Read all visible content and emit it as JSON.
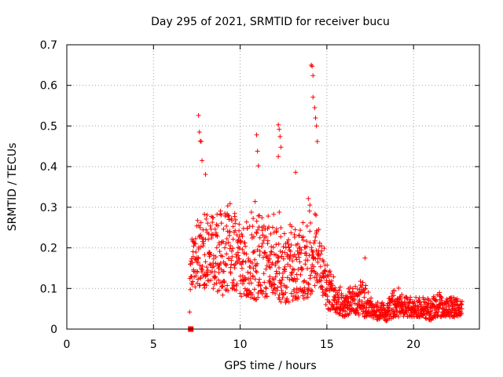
{
  "chart_data": {
    "type": "scatter",
    "title": "Day 295 of 2021, SRMTID for receiver bucu",
    "xlabel": "GPS time / hours",
    "ylabel": "SRMTID / TECUs",
    "xlim": [
      0,
      23.8
    ],
    "ylim": [
      0,
      0.7
    ],
    "xticks": [
      0,
      5,
      10,
      15,
      20
    ],
    "xtick_labels": [
      "0",
      "5",
      "10",
      "15",
      "20"
    ],
    "yticks": [
      0,
      0.1,
      0.2,
      0.3,
      0.4,
      0.5,
      0.6,
      0.7
    ],
    "ytick_labels": [
      "0",
      "0.1",
      "0.2",
      "0.3",
      "0.4",
      "0.5",
      "0.6",
      "0.7"
    ],
    "grid": true,
    "marker": "plus",
    "color": "#ff0000",
    "outlier_points": [
      {
        "x": 7.15,
        "y": 0.0
      },
      {
        "x": 7.6,
        "y": 0.526
      },
      {
        "x": 7.65,
        "y": 0.485
      },
      {
        "x": 7.7,
        "y": 0.463
      },
      {
        "x": 7.75,
        "y": 0.462
      },
      {
        "x": 7.8,
        "y": 0.415
      },
      {
        "x": 8.0,
        "y": 0.381
      },
      {
        "x": 10.95,
        "y": 0.478
      },
      {
        "x": 11.0,
        "y": 0.438
      },
      {
        "x": 11.05,
        "y": 0.402
      },
      {
        "x": 12.2,
        "y": 0.503
      },
      {
        "x": 12.25,
        "y": 0.492
      },
      {
        "x": 12.3,
        "y": 0.474
      },
      {
        "x": 12.35,
        "y": 0.448
      },
      {
        "x": 12.2,
        "y": 0.425
      },
      {
        "x": 13.2,
        "y": 0.386
      },
      {
        "x": 14.1,
        "y": 0.65
      },
      {
        "x": 14.15,
        "y": 0.647
      },
      {
        "x": 14.2,
        "y": 0.624
      },
      {
        "x": 14.2,
        "y": 0.571
      },
      {
        "x": 14.3,
        "y": 0.545
      },
      {
        "x": 14.35,
        "y": 0.52
      },
      {
        "x": 14.4,
        "y": 0.5
      },
      {
        "x": 14.45,
        "y": 0.462
      },
      {
        "x": 17.2,
        "y": 0.175
      }
    ],
    "trend_envelope": [
      {
        "x": 7.1,
        "low": 0.09,
        "high": 0.22
      },
      {
        "x": 7.5,
        "low": 0.1,
        "high": 0.3
      },
      {
        "x": 8.0,
        "low": 0.1,
        "high": 0.3
      },
      {
        "x": 8.5,
        "low": 0.1,
        "high": 0.28
      },
      {
        "x": 9.0,
        "low": 0.08,
        "high": 0.35
      },
      {
        "x": 9.5,
        "low": 0.1,
        "high": 0.32
      },
      {
        "x": 10.0,
        "low": 0.08,
        "high": 0.25
      },
      {
        "x": 10.5,
        "low": 0.08,
        "high": 0.28
      },
      {
        "x": 11.0,
        "low": 0.07,
        "high": 0.33
      },
      {
        "x": 11.5,
        "low": 0.08,
        "high": 0.3
      },
      {
        "x": 12.0,
        "low": 0.08,
        "high": 0.3
      },
      {
        "x": 12.5,
        "low": 0.06,
        "high": 0.28
      },
      {
        "x": 13.0,
        "low": 0.07,
        "high": 0.26
      },
      {
        "x": 13.5,
        "low": 0.07,
        "high": 0.25
      },
      {
        "x": 14.0,
        "low": 0.08,
        "high": 0.34
      },
      {
        "x": 14.5,
        "low": 0.12,
        "high": 0.3
      },
      {
        "x": 15.0,
        "low": 0.05,
        "high": 0.16
      },
      {
        "x": 15.5,
        "low": 0.04,
        "high": 0.12
      },
      {
        "x": 16.0,
        "low": 0.03,
        "high": 0.11
      },
      {
        "x": 16.5,
        "low": 0.04,
        "high": 0.1
      },
      {
        "x": 17.0,
        "low": 0.03,
        "high": 0.14
      },
      {
        "x": 17.5,
        "low": 0.03,
        "high": 0.08
      },
      {
        "x": 18.0,
        "low": 0.02,
        "high": 0.07
      },
      {
        "x": 18.5,
        "low": 0.02,
        "high": 0.07
      },
      {
        "x": 19.0,
        "low": 0.03,
        "high": 0.11
      },
      {
        "x": 19.5,
        "low": 0.03,
        "high": 0.08
      },
      {
        "x": 20.0,
        "low": 0.03,
        "high": 0.08
      },
      {
        "x": 20.5,
        "low": 0.03,
        "high": 0.08
      },
      {
        "x": 21.0,
        "low": 0.02,
        "high": 0.08
      },
      {
        "x": 21.5,
        "low": 0.03,
        "high": 0.09
      },
      {
        "x": 22.0,
        "low": 0.03,
        "high": 0.08
      },
      {
        "x": 22.5,
        "low": 0.03,
        "high": 0.08
      },
      {
        "x": 22.8,
        "low": 0.03,
        "high": 0.07
      }
    ]
  }
}
